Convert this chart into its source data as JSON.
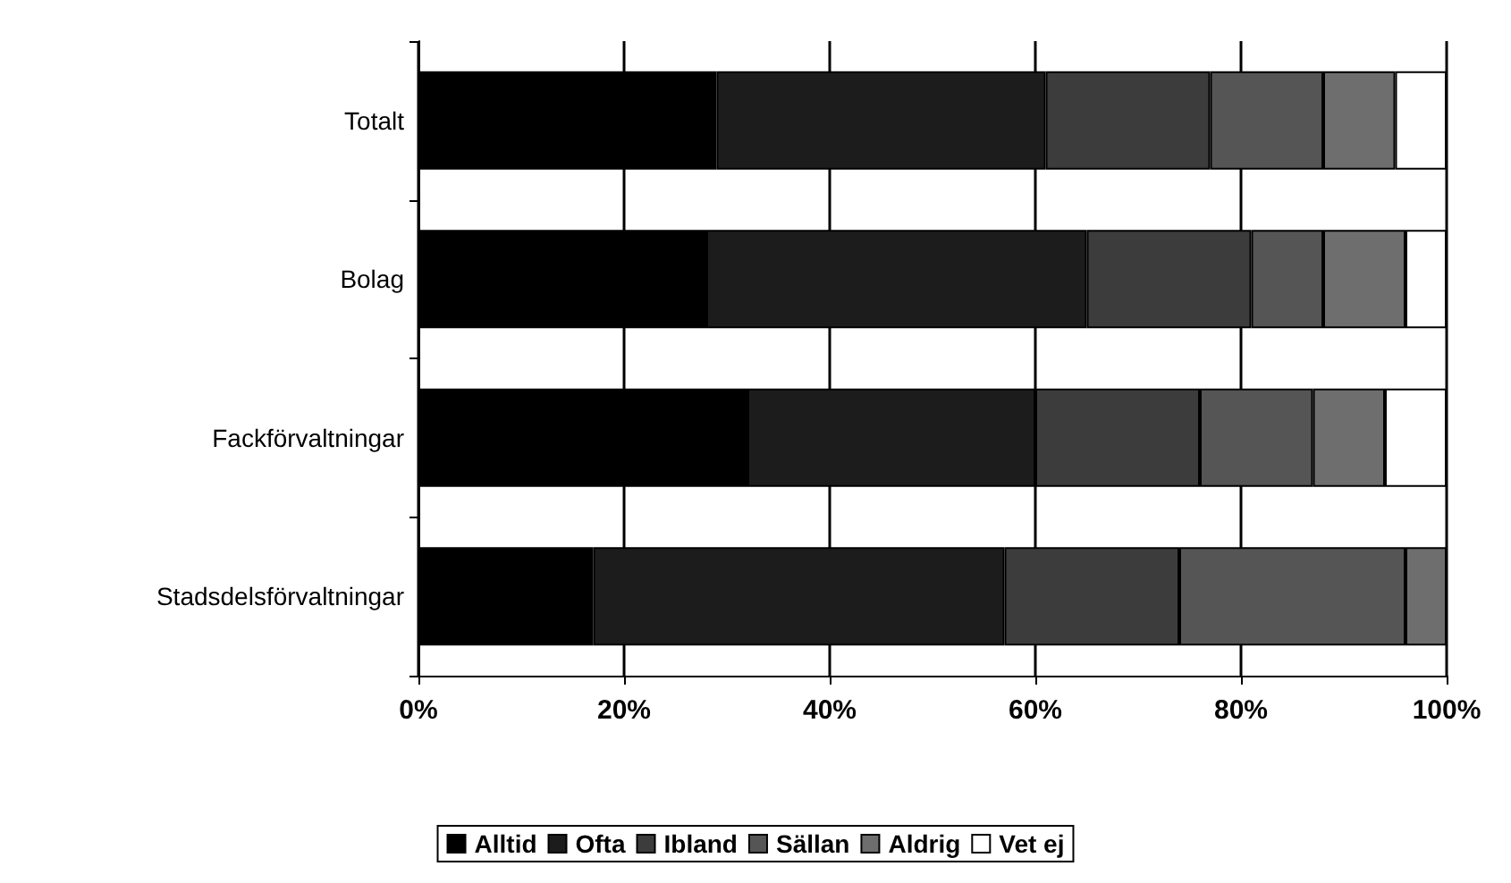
{
  "chart_data": {
    "type": "bar",
    "orientation": "horizontal",
    "stacked": true,
    "categories": [
      "Totalt",
      "Bolag",
      "Fackförvaltningar",
      "Stadsdelsförvaltningar"
    ],
    "series": [
      {
        "name": "Alltid",
        "color": "#000000",
        "values": [
          29,
          28,
          32,
          17
        ]
      },
      {
        "name": "Ofta",
        "color": "#1c1c1c",
        "values": [
          32,
          37,
          28,
          40
        ]
      },
      {
        "name": "Ibland",
        "color": "#3c3c3c",
        "values": [
          16,
          16,
          16,
          17
        ]
      },
      {
        "name": "Sällan",
        "color": "#555555",
        "values": [
          11,
          7,
          11,
          22
        ]
      },
      {
        "name": "Aldrig",
        "color": "#6e6e6e",
        "values": [
          7,
          8,
          7,
          4
        ]
      },
      {
        "name": "Vet ej",
        "color": "#ffffff",
        "values": [
          5,
          4,
          6,
          null
        ]
      }
    ],
    "xlim": [
      0,
      100
    ],
    "xticks": [
      {
        "value": 0,
        "label": "0%"
      },
      {
        "value": 20,
        "label": "20%"
      },
      {
        "value": 40,
        "label": "40%"
      },
      {
        "value": 60,
        "label": "60%"
      },
      {
        "value": 80,
        "label": "80%"
      },
      {
        "value": 100,
        "label": "100%"
      }
    ],
    "grid": "x",
    "legend": "bottom"
  }
}
